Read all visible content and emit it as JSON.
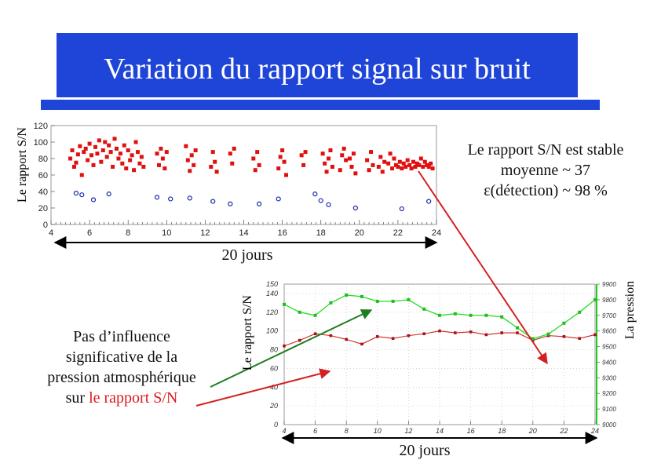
{
  "title": "Variation du rapport signal sur bruit",
  "colors": {
    "title_bg": "#1f45d8",
    "red_series": "#e01010",
    "blue_series": "#1a2aa8",
    "green_series": "#22dd22",
    "arrow_red": "#d42020",
    "arrow_green": "#1e7d1e"
  },
  "annotations": {
    "stable_line1": "Le rapport S/N est stable",
    "stable_line2": "moyenne ~ 37",
    "stable_line3": "ε(détection) ~ 98 %",
    "influence_line1": "Pas d’influence",
    "influence_line2": "significative de la",
    "influence_line3": "pression atmosphérique",
    "influence_line4_part1": "sur ",
    "influence_line4_part2": "le rapport S/N",
    "span_top": "20 jours",
    "span_bottom": "20 jours"
  },
  "chart_data": [
    {
      "type": "scatter",
      "ylabel": "Le rapport S/N",
      "xlim": [
        4,
        24
      ],
      "ylim": [
        0,
        120
      ],
      "x_ticks": [
        4,
        6,
        8,
        10,
        12,
        14,
        16,
        18,
        20,
        22,
        24
      ],
      "y_ticks": [
        0,
        20,
        40,
        60,
        80,
        100,
        120
      ],
      "series": [
        {
          "color": "red filled squares",
          "x": [
            5.0,
            5.1,
            5.2,
            5.3,
            5.4,
            5.5,
            5.6,
            5.7,
            5.8,
            5.9,
            6.0,
            6.1,
            6.2,
            6.3,
            6.4,
            6.5,
            6.6,
            6.7,
            6.8,
            6.9,
            7.0,
            7.1,
            7.2,
            7.3,
            7.4,
            7.5,
            7.6,
            7.7,
            7.8,
            7.9,
            8.0,
            8.1,
            8.2,
            8.3,
            8.4,
            8.5,
            8.6,
            8.7,
            8.8,
            9.5,
            9.6,
            9.7,
            9.8,
            9.9,
            10.0,
            11.0,
            11.1,
            11.2,
            11.3,
            11.4,
            11.5,
            12.3,
            12.4,
            12.5,
            12.6,
            13.3,
            13.4,
            13.5,
            14.5,
            14.6,
            14.7,
            14.8,
            15.8,
            15.9,
            16.0,
            16.1,
            16.2,
            17.0,
            17.1,
            17.2,
            18.1,
            18.2,
            18.3,
            18.4,
            18.5,
            18.6,
            19.0,
            19.1,
            19.2,
            19.3,
            19.5,
            19.6,
            19.7,
            19.8,
            20.4,
            20.5,
            20.6,
            20.7,
            21.0,
            21.1,
            21.2,
            21.3,
            21.5,
            21.6,
            21.7,
            21.8,
            21.9,
            22.0,
            22.1,
            22.2,
            22.3,
            22.4,
            22.5,
            22.6,
            22.7,
            22.8,
            22.9,
            23.0,
            23.1,
            23.2,
            23.3,
            23.4,
            23.5,
            23.6,
            23.7,
            23.8
          ],
          "y": [
            80,
            90,
            70,
            75,
            85,
            95,
            60,
            88,
            92,
            78,
            98,
            84,
            72,
            94,
            86,
            102,
            76,
            90,
            100,
            82,
            96,
            88,
            70,
            104,
            92,
            80,
            86,
            74,
            96,
            68,
            90,
            78,
            84,
            66,
            100,
            88,
            74,
            82,
            70,
            86,
            72,
            92,
            80,
            68,
            88,
            95,
            78,
            65,
            84,
            72,
            90,
            70,
            88,
            76,
            64,
            86,
            74,
            92,
            80,
            66,
            88,
            72,
            68,
            82,
            90,
            76,
            60,
            84,
            72,
            88,
            86,
            74,
            64,
            80,
            90,
            70,
            66,
            84,
            92,
            78,
            80,
            70,
            86,
            62,
            78,
            66,
            88,
            72,
            70,
            82,
            64,
            76,
            74,
            86,
            68,
            80,
            72,
            70,
            76,
            68,
            74,
            70,
            78,
            72,
            68,
            76,
            70,
            74,
            72,
            80,
            70,
            76,
            72,
            70,
            74,
            68
          ],
          "names": []
        },
        {
          "color": "blue open circles",
          "x": [
            5.3,
            5.6,
            6.2,
            7.0,
            9.5,
            10.2,
            11.2,
            12.4,
            13.3,
            14.8,
            15.8,
            17.7,
            18.0,
            18.4,
            19.8,
            22.2,
            23.6
          ],
          "y": [
            38,
            36,
            30,
            37,
            33,
            31,
            32,
            28,
            25,
            25,
            31,
            37,
            29,
            24,
            20,
            19,
            28
          ]
        }
      ]
    },
    {
      "type": "line",
      "ylabel": "Le rapport S/N",
      "y2label": "La pression",
      "xlim": [
        4,
        24
      ],
      "ylim": [
        0,
        150
      ],
      "y2lim": [
        9000,
        9900
      ],
      "x_ticks": [
        4,
        6,
        8,
        10,
        12,
        14,
        16,
        18,
        20,
        22,
        24
      ],
      "y_ticks": [
        0,
        20,
        40,
        60,
        80,
        100,
        120,
        140,
        150
      ],
      "y2_ticks": [
        9000,
        9100,
        9200,
        9300,
        9400,
        9500,
        9600,
        9700,
        9800,
        9900
      ],
      "series": [
        {
          "axis": "left",
          "color": "red",
          "x": [
            4.0,
            5.0,
            6.0,
            7.0,
            8.0,
            9.0,
            10.0,
            11.0,
            12.0,
            13.0,
            14.0,
            15.0,
            16.0,
            17.0,
            18.0,
            19.0,
            20.0,
            21.0,
            22.0,
            23.0,
            24.0
          ],
          "y": [
            84,
            90,
            97,
            95,
            91,
            86,
            94,
            92,
            95,
            97,
            100,
            98,
            99,
            96,
            98,
            98,
            90,
            95,
            94,
            92,
            96
          ]
        },
        {
          "axis": "right",
          "color": "green",
          "x": [
            4.0,
            5.0,
            6.0,
            7.0,
            8.0,
            9.0,
            10.0,
            11.0,
            12.0,
            13.0,
            14.0,
            15.0,
            16.0,
            17.0,
            18.0,
            19.0,
            20.0,
            21.0,
            22.0,
            23.0,
            24.0
          ],
          "y": [
            9770,
            9720,
            9700,
            9780,
            9830,
            9820,
            9790,
            9790,
            9800,
            9740,
            9700,
            9710,
            9700,
            9700,
            9690,
            9620,
            9550,
            9580,
            9650,
            9720,
            9800
          ]
        }
      ]
    }
  ]
}
